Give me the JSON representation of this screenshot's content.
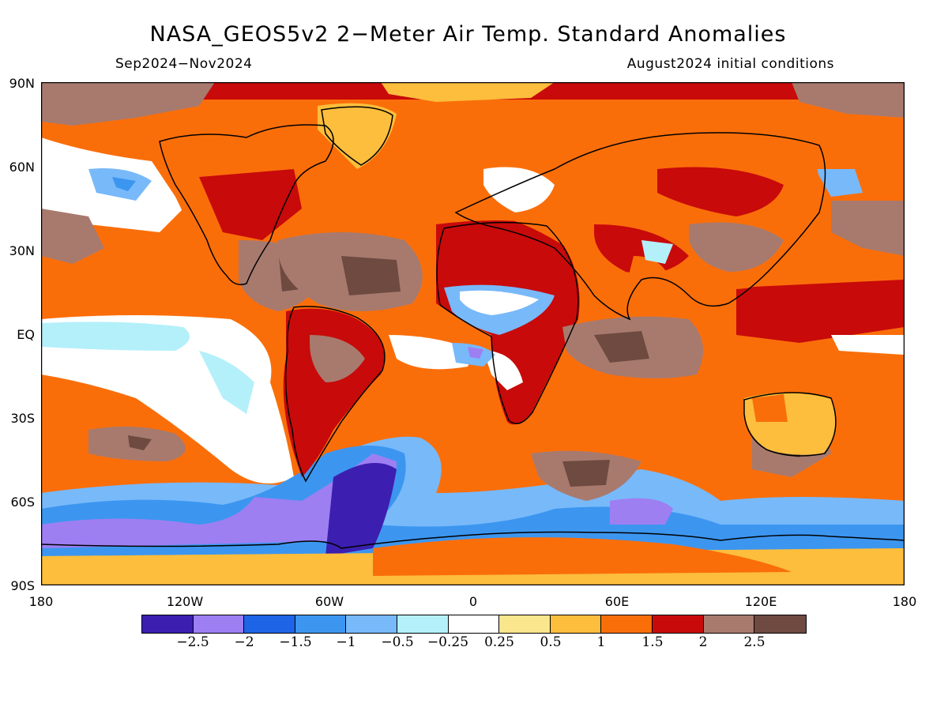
{
  "title": "NASA_GEOS5v2 2-Meter Air Temp. Standard Anomalies",
  "period": "Sep2024-Nov2024",
  "init": "August2024 initial conditions",
  "lat_labels": [
    "90N",
    "60N",
    "30N",
    "EQ",
    "30S",
    "60S",
    "90S"
  ],
  "lon_labels": [
    "180",
    "120W",
    "60W",
    "0",
    "60E",
    "120E",
    "180"
  ],
  "legend": {
    "colors": [
      "#3c1fb0",
      "#9d7ff2",
      "#1e64e6",
      "#3c96f0",
      "#78b9fa",
      "#b4f0fa",
      "#ffffff",
      "#fae68c",
      "#fcbe3c",
      "#fa6e0a",
      "#c80a0a",
      "#a87a6e",
      "#6e4a40"
    ],
    "labels": [
      "-2.5",
      "-2",
      "-1.5",
      "-1",
      "-0.5",
      "-0.25",
      "0.25",
      "0.5",
      "1",
      "1.5",
      "2",
      "2.5"
    ]
  },
  "colors": {
    "ocean_base": "#fcbe3c",
    "coast": "#000000"
  }
}
